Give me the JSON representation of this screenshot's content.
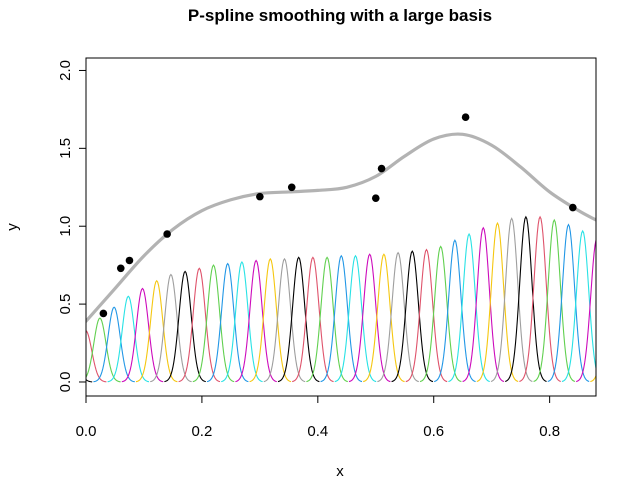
{
  "chart_data": {
    "type": "line",
    "title": "P-spline smoothing with a large basis",
    "xlabel": "x",
    "ylabel": "y",
    "xlim": [
      0,
      0.88
    ],
    "ylim": [
      0,
      2.0
    ],
    "x_ticks": [
      "0.0",
      "0.2",
      "0.4",
      "0.6",
      "0.8"
    ],
    "y_ticks": [
      "0.0",
      "0.5",
      "1.0",
      "1.5",
      "2.0"
    ],
    "grid": false,
    "points": [
      {
        "x": 0.03,
        "y": 0.44
      },
      {
        "x": 0.06,
        "y": 0.73
      },
      {
        "x": 0.075,
        "y": 0.78
      },
      {
        "x": 0.14,
        "y": 0.95
      },
      {
        "x": 0.3,
        "y": 1.19
      },
      {
        "x": 0.355,
        "y": 1.25
      },
      {
        "x": 0.5,
        "y": 1.18
      },
      {
        "x": 0.51,
        "y": 1.37
      },
      {
        "x": 0.655,
        "y": 1.7
      },
      {
        "x": 0.84,
        "y": 1.12
      }
    ],
    "smooth_curve": {
      "color": "#b3b3b3",
      "x": [
        0.0,
        0.05,
        0.1,
        0.15,
        0.2,
        0.25,
        0.3,
        0.35,
        0.4,
        0.45,
        0.5,
        0.55,
        0.6,
        0.65,
        0.7,
        0.75,
        0.8,
        0.85,
        0.88
      ],
      "y": [
        0.39,
        0.6,
        0.81,
        0.98,
        1.1,
        1.17,
        1.21,
        1.22,
        1.23,
        1.25,
        1.32,
        1.45,
        1.56,
        1.59,
        1.52,
        1.38,
        1.22,
        1.1,
        1.04
      ]
    },
    "basis": {
      "start": -0.025,
      "spacing": 0.0245,
      "sigma": 0.0105,
      "count": 39,
      "colors": [
        "#000000",
        "#DF536B",
        "#61D04F",
        "#2297E6",
        "#28E2E5",
        "#CD0BBC",
        "#F5C710",
        "#9E9E9E"
      ],
      "heights": [
        0.26,
        0.33,
        0.41,
        0.48,
        0.55,
        0.6,
        0.65,
        0.69,
        0.71,
        0.73,
        0.75,
        0.76,
        0.77,
        0.78,
        0.79,
        0.79,
        0.8,
        0.8,
        0.8,
        0.81,
        0.81,
        0.82,
        0.82,
        0.83,
        0.84,
        0.85,
        0.87,
        0.91,
        0.95,
        0.99,
        1.02,
        1.05,
        1.06,
        1.06,
        1.04,
        1.01,
        0.97,
        0.92,
        0.86
      ]
    }
  }
}
